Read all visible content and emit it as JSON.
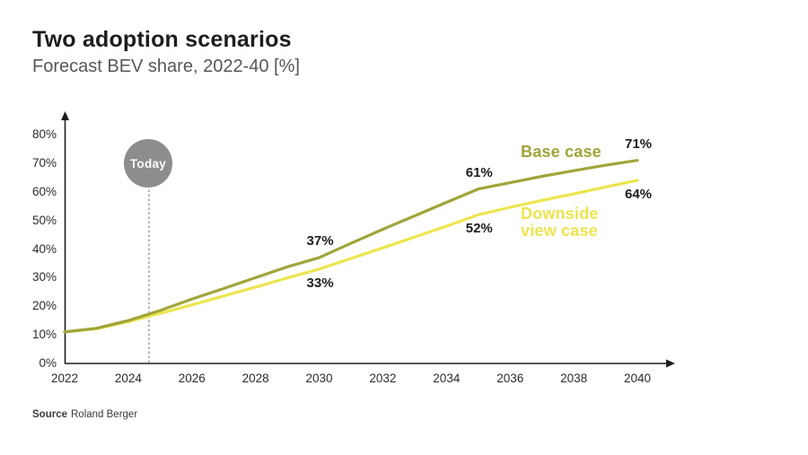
{
  "header": {
    "title": "Two adoption scenarios",
    "subtitle": "Forecast BEV share, 2022-40 [%]"
  },
  "chart_data": {
    "type": "line",
    "title": "Two adoption scenarios",
    "subtitle": "Forecast BEV share, 2022-40 [%]",
    "xlabel": "",
    "ylabel": "",
    "x_range": [
      2022,
      2040
    ],
    "y_range": [
      0,
      80
    ],
    "grid": false,
    "legend_position": "inline-right",
    "axis_color": "#1d1d1b",
    "x_ticks": [
      {
        "label": "2022",
        "value": 2022
      },
      {
        "label": "2024",
        "value": 2024
      },
      {
        "label": "2026",
        "value": 2026
      },
      {
        "label": "2028",
        "value": 2028
      },
      {
        "label": "2030",
        "value": 2030
      },
      {
        "label": "2032",
        "value": 2032
      },
      {
        "label": "2034",
        "value": 2034
      },
      {
        "label": "2036",
        "value": 2036
      },
      {
        "label": "2038",
        "value": 2038
      },
      {
        "label": "2040",
        "value": 2040
      }
    ],
    "y_ticks": [
      {
        "label": "0%",
        "value": 0
      },
      {
        "label": "10%",
        "value": 10
      },
      {
        "label": "20%",
        "value": 20
      },
      {
        "label": "30%",
        "value": 30
      },
      {
        "label": "40%",
        "value": 40
      },
      {
        "label": "50%",
        "value": 50
      },
      {
        "label": "60%",
        "value": 60
      },
      {
        "label": "70%",
        "value": 70
      },
      {
        "label": "80%",
        "value": 80
      }
    ],
    "series": [
      {
        "name": "Base case",
        "color": "#a0a53a",
        "points": [
          [
            2022,
            11
          ],
          [
            2023,
            12.3
          ],
          [
            2024,
            15
          ],
          [
            2025,
            18.5
          ],
          [
            2026,
            22.5
          ],
          [
            2027,
            26.2
          ],
          [
            2028,
            30
          ],
          [
            2029,
            33.8
          ],
          [
            2030,
            37
          ],
          [
            2031,
            42
          ],
          [
            2032,
            46.9
          ],
          [
            2033,
            51.6
          ],
          [
            2034,
            56.3
          ],
          [
            2035,
            61
          ],
          [
            2036,
            63.2
          ],
          [
            2037,
            65.4
          ],
          [
            2038,
            67.4
          ],
          [
            2039,
            69.3
          ],
          [
            2040,
            71
          ]
        ],
        "value_labels": [
          {
            "text": "37%",
            "year": 2030,
            "value": 37,
            "side": "above"
          },
          {
            "text": "61%",
            "year": 2035,
            "value": 61,
            "side": "above"
          },
          {
            "text": "71%",
            "year": 2040,
            "value": 71,
            "side": "above"
          }
        ]
      },
      {
        "name": "Downside view case",
        "color": "#ece54e",
        "points": [
          [
            2022,
            11
          ],
          [
            2023,
            12.1
          ],
          [
            2024,
            14.6
          ],
          [
            2025,
            17.5
          ],
          [
            2026,
            20.5
          ],
          [
            2027,
            23.6
          ],
          [
            2028,
            26.7
          ],
          [
            2029,
            29.9
          ],
          [
            2030,
            33
          ],
          [
            2031,
            36.7
          ],
          [
            2032,
            40.4
          ],
          [
            2033,
            44.2
          ],
          [
            2034,
            48
          ],
          [
            2035,
            52
          ],
          [
            2036,
            54.6
          ],
          [
            2037,
            57
          ],
          [
            2038,
            59.3
          ],
          [
            2039,
            61.7
          ],
          [
            2040,
            64
          ]
        ],
        "value_labels": [
          {
            "text": "33%",
            "year": 2030,
            "value": 33,
            "side": "below"
          },
          {
            "text": "52%",
            "year": 2035,
            "value": 52,
            "side": "below"
          },
          {
            "text": "64%",
            "year": 2040,
            "value": 64,
            "side": "below"
          }
        ]
      }
    ],
    "annotations": {
      "today": {
        "label": "Today",
        "year": 2024.65
      }
    }
  },
  "source": {
    "label": "Source",
    "text": "Roland Berger"
  },
  "colors": {
    "title": "#1d1d1b",
    "subtitle": "#575756",
    "today_badge": "#8d8d8d",
    "base_line": "#a0a53a",
    "downside_line": "#ece54e",
    "axis": "#1d1d1b",
    "value_label_text": "#1d1d1b"
  }
}
